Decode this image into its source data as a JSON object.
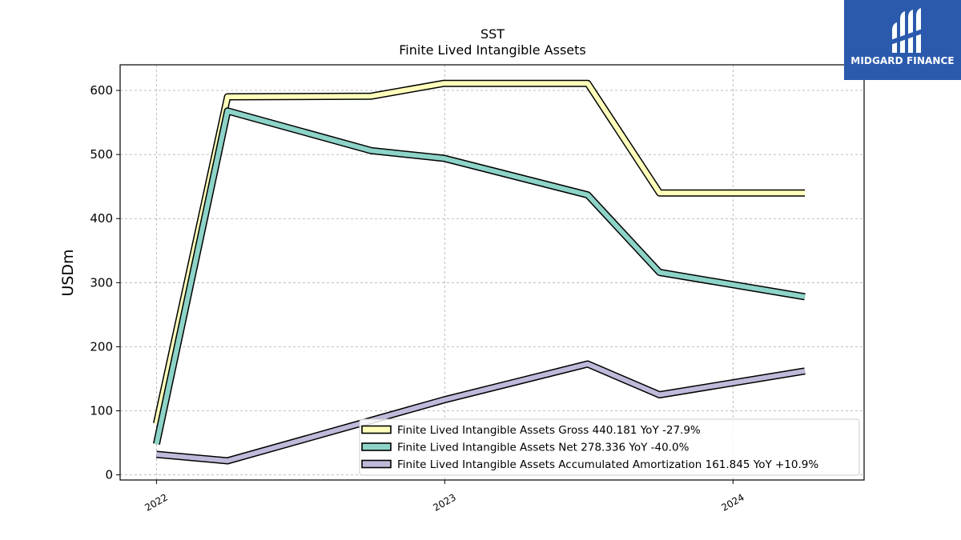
{
  "brand": {
    "name": "MIDGARD FINANCE",
    "color": "#2b5aad"
  },
  "chart_data": {
    "type": "line",
    "title": "SST",
    "subtitle": "Finite Lived Intangible Assets",
    "ylabel": "USDm",
    "xlabel": "",
    "ylim": [
      -8,
      640
    ],
    "xlim": [
      "2021-11-16",
      "2024-06-15"
    ],
    "yticks": [
      0,
      100,
      200,
      300,
      400,
      500,
      600
    ],
    "xticks": [
      {
        "date": "2022-01-01",
        "label": "2022"
      },
      {
        "date": "2023-01-01",
        "label": "2023"
      },
      {
        "date": "2024-01-01",
        "label": "2024"
      }
    ],
    "grid": true,
    "legend_position": "lower-right",
    "series": [
      {
        "name": "Finite Lived Intangible Assets Gross  440.181 YoY -27.9%",
        "color": "#ffffbb",
        "points": [
          [
            "2022-01-01",
            80
          ],
          [
            "2022-04-01",
            590
          ],
          [
            "2022-09-30",
            591
          ],
          [
            "2022-12-31",
            611
          ],
          [
            "2023-07-01",
            611
          ],
          [
            "2023-09-30",
            440
          ],
          [
            "2024-04-01",
            440
          ]
        ]
      },
      {
        "name": "Finite Lived Intangible Assets Net  278.336 YoY -40.0%",
        "color": "#8dd3c7",
        "points": [
          [
            "2022-01-01",
            48
          ],
          [
            "2022-04-01",
            568
          ],
          [
            "2022-09-30",
            506
          ],
          [
            "2022-12-31",
            494
          ],
          [
            "2023-07-01",
            437
          ],
          [
            "2023-09-30",
            316
          ],
          [
            "2024-04-01",
            278
          ]
        ]
      },
      {
        "name": "Finite Lived Intangible Assets Accumulated Amortization  161.845 YoY +10.9%",
        "color": "#bebada",
        "points": [
          [
            "2022-01-01",
            32
          ],
          [
            "2022-04-01",
            22
          ],
          [
            "2022-09-30",
            85
          ],
          [
            "2022-12-31",
            117
          ],
          [
            "2023-07-01",
            173
          ],
          [
            "2023-09-30",
            125
          ],
          [
            "2024-04-01",
            162
          ]
        ]
      }
    ]
  }
}
